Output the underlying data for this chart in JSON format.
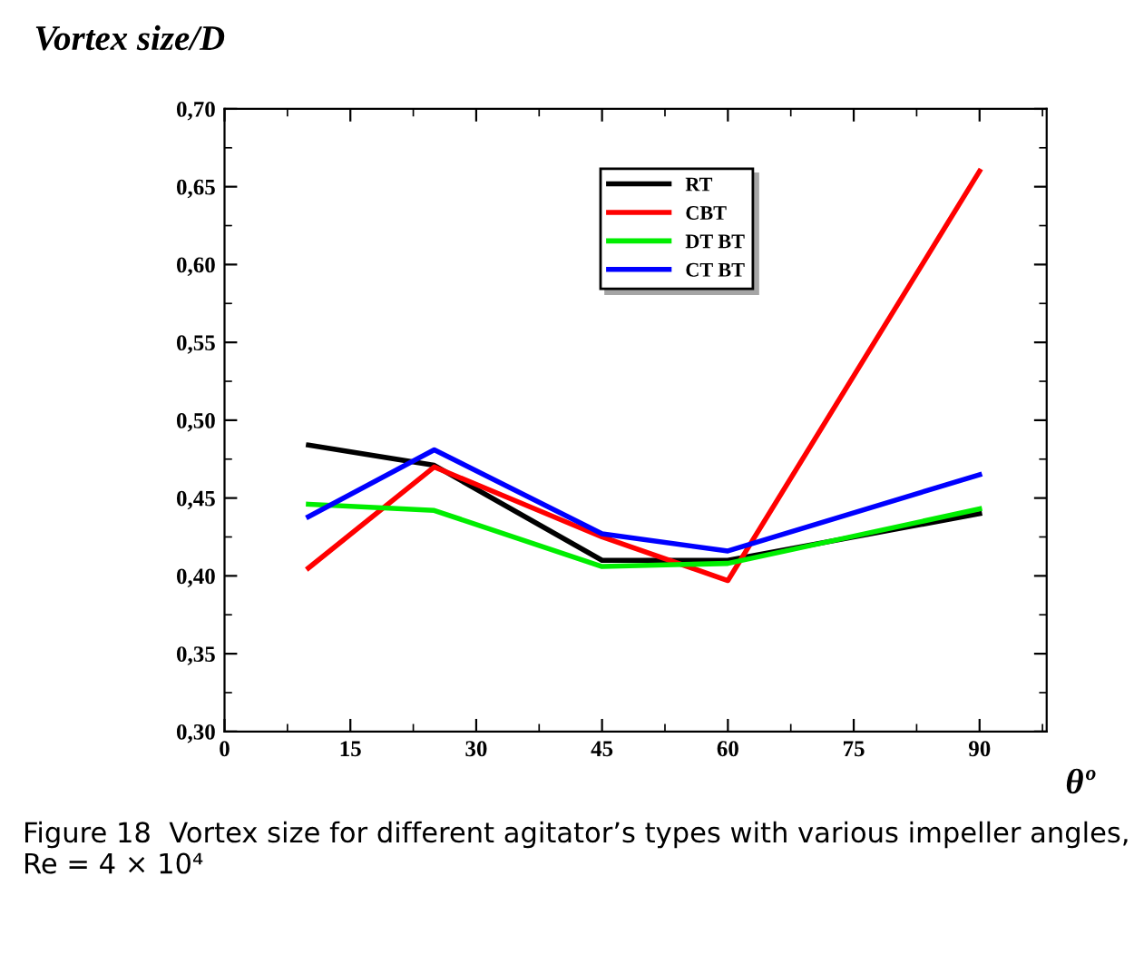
{
  "chart_data": {
    "type": "line",
    "ylabel": "Vortex size/D",
    "xlabel": "θº",
    "x": [
      10,
      25,
      45,
      60,
      90
    ],
    "series": [
      {
        "name": "RT",
        "color": "#000000",
        "values": [
          0.484,
          0.471,
          0.41,
          0.41,
          0.44
        ]
      },
      {
        "name": "CBT",
        "color": "#ff0000",
        "values": [
          0.405,
          0.47,
          0.425,
          0.397,
          0.66
        ]
      },
      {
        "name": "DT BT",
        "color": "#00ee00",
        "values": [
          0.446,
          0.442,
          0.406,
          0.408,
          0.443
        ]
      },
      {
        "name": "CT BT",
        "color": "#0000ff",
        "values": [
          0.438,
          0.481,
          0.427,
          0.416,
          0.465
        ]
      }
    ],
    "xlim": [
      0,
      98
    ],
    "xticks": [
      0,
      15,
      30,
      45,
      60,
      75,
      90
    ],
    "ylim": [
      0.3,
      0.7
    ],
    "yticks": [
      {
        "value": 0.3,
        "label": "0,30"
      },
      {
        "value": 0.35,
        "label": "0,35"
      },
      {
        "value": 0.4,
        "label": "0,40"
      },
      {
        "value": 0.45,
        "label": "0,45"
      },
      {
        "value": 0.5,
        "label": "0,50"
      },
      {
        "value": 0.55,
        "label": "0,55"
      },
      {
        "value": 0.6,
        "label": "0,60"
      },
      {
        "value": 0.65,
        "label": "0,65"
      },
      {
        "value": 0.7,
        "label": "0,70"
      }
    ],
    "grid": false,
    "legend": "top",
    "marker": "none",
    "line_style": "solid",
    "annotations": [
      "Figure 18  Vortex size for different agitator’s types with various impeller angles, Re = 4 × 10⁴"
    ]
  }
}
